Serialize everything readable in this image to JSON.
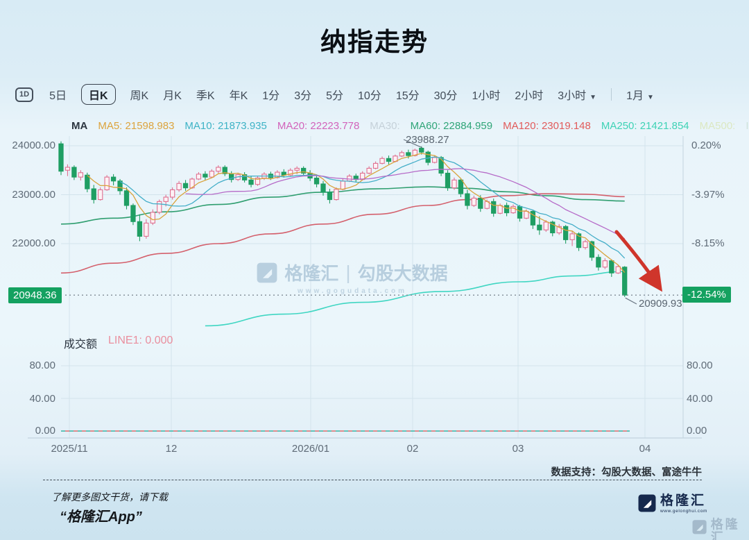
{
  "title": "纳指走势",
  "toolbar": {
    "interval_icon": "1D",
    "items": [
      {
        "label": "5日",
        "selected": false,
        "caret": false,
        "divider_before": false
      },
      {
        "label": "日K",
        "selected": true,
        "caret": false,
        "divider_before": false
      },
      {
        "label": "周K",
        "selected": false,
        "caret": false,
        "divider_before": false
      },
      {
        "label": "月K",
        "selected": false,
        "caret": false,
        "divider_before": false
      },
      {
        "label": "季K",
        "selected": false,
        "caret": false,
        "divider_before": false
      },
      {
        "label": "年K",
        "selected": false,
        "caret": false,
        "divider_before": false
      },
      {
        "label": "1分",
        "selected": false,
        "caret": false,
        "divider_before": false
      },
      {
        "label": "3分",
        "selected": false,
        "caret": false,
        "divider_before": false
      },
      {
        "label": "5分",
        "selected": false,
        "caret": false,
        "divider_before": false
      },
      {
        "label": "10分",
        "selected": false,
        "caret": false,
        "divider_before": false
      },
      {
        "label": "15分",
        "selected": false,
        "caret": false,
        "divider_before": false
      },
      {
        "label": "30分",
        "selected": false,
        "caret": false,
        "divider_before": false
      },
      {
        "label": "1小时",
        "selected": false,
        "caret": false,
        "divider_before": false
      },
      {
        "label": "2小时",
        "selected": false,
        "caret": false,
        "divider_before": false
      },
      {
        "label": "3小时",
        "selected": false,
        "caret": true,
        "divider_before": false
      },
      {
        "label": "1月",
        "selected": false,
        "caret": true,
        "divider_before": true
      }
    ]
  },
  "ma_legend": {
    "prefix": "MA",
    "items": [
      {
        "name": "MA5:",
        "value": "21598.983",
        "color": "#dca43e"
      },
      {
        "name": "MA10:",
        "value": "21873.935",
        "color": "#3eb3c6"
      },
      {
        "name": "MA20:",
        "value": "22223.778",
        "color": "#d263bb"
      },
      {
        "name": "MA30:",
        "value": "",
        "color": "#c5d1d9"
      },
      {
        "name": "MA60:",
        "value": "22884.959",
        "color": "#2fa578"
      },
      {
        "name": "MA120:",
        "value": "23019.148",
        "color": "#e15b5b"
      },
      {
        "name": "MA250:",
        "value": "21421.854",
        "color": "#3ed2b5"
      },
      {
        "name": "MA500:",
        "value": "",
        "color": "#dbe8c2"
      },
      {
        "name": "I",
        "value": "",
        "color": "#cfe3da"
      }
    ]
  },
  "price_axis": {
    "left": [
      "24000.00",
      "23000.00",
      "22000.00"
    ],
    "current_left": "20948.36",
    "right": [
      "0.20%",
      "-3.97%",
      "-8.15%"
    ],
    "current_right": "-12.54%"
  },
  "annotations": {
    "peak": "23988.27",
    "last": "20909.93"
  },
  "volume_panel": {
    "label": "成交额",
    "line1": "LINE1: 0.000",
    "axis_left": [
      "80.00",
      "40.00",
      "0.00"
    ],
    "axis_right": [
      "80.00",
      "40.00",
      "0.00"
    ]
  },
  "watermark": {
    "brand": "格隆汇",
    "sep": "|",
    "name": "勾股大数据",
    "url": "www.gogudata.com"
  },
  "footer": {
    "support": "数据支持：勾股大数据、富途牛牛",
    "promo_line1": "了解更多图文干货，请下载",
    "promo_line2": "“格隆汇App”",
    "logo_text": "格隆汇",
    "logo_url": "www.gelonghui.com"
  },
  "colors": {
    "up_candle": "#df7090",
    "up_fill": "#fdf1f5",
    "down_candle": "#1f9e63",
    "badge_green": "#14a160",
    "arrow_red": "#cf352b",
    "grid": "#d3e3ec",
    "axis_line": "#c3d4de",
    "dotted_price_line": "#7f8b96",
    "vol_dash_teal": "#35b3a2",
    "vol_dash_red": "#d96a6a"
  },
  "chart_data": {
    "type": "candlestick",
    "title": "纳指走势",
    "x_labels": [
      "2025/11",
      "12",
      "2026/01",
      "02",
      "03",
      "04"
    ],
    "price_gridlines": [
      24000,
      23000,
      22000
    ],
    "ylim": [
      20300,
      24250
    ],
    "current_price": 20948.36,
    "current_change_pct": -12.54,
    "peak_high": 23988.27,
    "last_low": 20909.93,
    "volume_gridlines": [
      80,
      40,
      0
    ],
    "volume_line_value": 0.0,
    "candles": [
      [
        24040,
        24090,
        23400,
        23480
      ],
      [
        23500,
        23620,
        23380,
        23560
      ],
      [
        23560,
        23600,
        23300,
        23360
      ],
      [
        23360,
        23500,
        23290,
        23450
      ],
      [
        23400,
        23450,
        23050,
        23120
      ],
      [
        23120,
        23200,
        22820,
        22900
      ],
      [
        22900,
        23150,
        22880,
        23100
      ],
      [
        23100,
        23400,
        23080,
        23360
      ],
      [
        23360,
        23420,
        23190,
        23280
      ],
      [
        23280,
        23320,
        23000,
        23080
      ],
      [
        23080,
        23150,
        22700,
        22780
      ],
      [
        22780,
        22820,
        22380,
        22450
      ],
      [
        22450,
        22600,
        22050,
        22150
      ],
      [
        22150,
        22500,
        22100,
        22420
      ],
      [
        22420,
        22700,
        22380,
        22640
      ],
      [
        22640,
        22900,
        22600,
        22860
      ],
      [
        22860,
        23000,
        22760,
        22950
      ],
      [
        22950,
        23150,
        22900,
        23100
      ],
      [
        23100,
        23280,
        23060,
        23230
      ],
      [
        23230,
        23300,
        23080,
        23140
      ],
      [
        23140,
        23350,
        23120,
        23320
      ],
      [
        23320,
        23460,
        23300,
        23420
      ],
      [
        23420,
        23480,
        23300,
        23360
      ],
      [
        23360,
        23520,
        23340,
        23480
      ],
      [
        23480,
        23600,
        23440,
        23560
      ],
      [
        23560,
        23600,
        23380,
        23430
      ],
      [
        23430,
        23480,
        23250,
        23310
      ],
      [
        23310,
        23450,
        23280,
        23410
      ],
      [
        23410,
        23460,
        23250,
        23300
      ],
      [
        23300,
        23380,
        23150,
        23210
      ],
      [
        23210,
        23380,
        23180,
        23340
      ],
      [
        23340,
        23460,
        23300,
        23420
      ],
      [
        23420,
        23470,
        23300,
        23350
      ],
      [
        23350,
        23500,
        23330,
        23460
      ],
      [
        23460,
        23520,
        23350,
        23400
      ],
      [
        23400,
        23540,
        23380,
        23500
      ],
      [
        23500,
        23580,
        23420,
        23540
      ],
      [
        23540,
        23580,
        23380,
        23440
      ],
      [
        23440,
        23500,
        23280,
        23340
      ],
      [
        23340,
        23400,
        23150,
        23220
      ],
      [
        23220,
        23280,
        22980,
        23050
      ],
      [
        23050,
        23120,
        22820,
        22900
      ],
      [
        22900,
        23150,
        22880,
        23110
      ],
      [
        23110,
        23320,
        23090,
        23280
      ],
      [
        23280,
        23420,
        23260,
        23380
      ],
      [
        23380,
        23430,
        23250,
        23310
      ],
      [
        23310,
        23480,
        23290,
        23440
      ],
      [
        23440,
        23580,
        23420,
        23540
      ],
      [
        23540,
        23680,
        23520,
        23640
      ],
      [
        23640,
        23780,
        23620,
        23740
      ],
      [
        23740,
        23800,
        23620,
        23680
      ],
      [
        23680,
        23820,
        23660,
        23790
      ],
      [
        23790,
        23900,
        23770,
        23860
      ],
      [
        23860,
        23920,
        23740,
        23800
      ],
      [
        23800,
        23940,
        23780,
        23910
      ],
      [
        23950,
        23988,
        23820,
        23870
      ],
      [
        23870,
        23900,
        23600,
        23660
      ],
      [
        23660,
        23800,
        23640,
        23760
      ],
      [
        23760,
        23790,
        23380,
        23440
      ],
      [
        23440,
        23500,
        23080,
        23140
      ],
      [
        23140,
        23350,
        23100,
        23300
      ],
      [
        23300,
        23340,
        22950,
        23020
      ],
      [
        23020,
        23100,
        22700,
        22780
      ],
      [
        22780,
        22980,
        22750,
        22930
      ],
      [
        22930,
        22990,
        22650,
        22720
      ],
      [
        22720,
        22900,
        22700,
        22860
      ],
      [
        22860,
        22920,
        22550,
        22620
      ],
      [
        22620,
        22820,
        22600,
        22780
      ],
      [
        22780,
        22840,
        22560,
        22630
      ],
      [
        22630,
        22800,
        22610,
        22760
      ],
      [
        22760,
        22790,
        22450,
        22520
      ],
      [
        22520,
        22700,
        22500,
        22660
      ],
      [
        22660,
        22690,
        22300,
        22380
      ],
      [
        22380,
        22560,
        22180,
        22280
      ],
      [
        22280,
        22480,
        22240,
        22440
      ],
      [
        22440,
        22470,
        22150,
        22220
      ],
      [
        22220,
        22400,
        22180,
        22350
      ],
      [
        22350,
        22380,
        22000,
        22080
      ],
      [
        22080,
        22260,
        21950,
        22200
      ],
      [
        22200,
        22230,
        21850,
        21920
      ],
      [
        21920,
        22080,
        21880,
        22040
      ],
      [
        22040,
        22060,
        21650,
        21720
      ],
      [
        21720,
        21780,
        21450,
        21520
      ],
      [
        21520,
        21700,
        21480,
        21650
      ],
      [
        21650,
        21680,
        21320,
        21400
      ],
      [
        21400,
        21560,
        21380,
        21530
      ],
      [
        21520,
        21540,
        20910,
        20948
      ]
    ],
    "ma_series": [
      {
        "name": "MA5",
        "period": 5,
        "color": "#d9a33c",
        "current": "21598.983"
      },
      {
        "name": "MA10",
        "period": 10,
        "color": "#44aec8",
        "current": "21873.935"
      },
      {
        "name": "MA20",
        "period": 20,
        "color": "#b66bc8",
        "current": "22223.778"
      },
      {
        "name": "MA60",
        "color": "#2f9e6f",
        "current": "22884.959",
        "points": [
          [
            0,
            22400
          ],
          [
            8,
            22520
          ],
          [
            16,
            22650
          ],
          [
            24,
            22800
          ],
          [
            32,
            22950
          ],
          [
            40,
            23050
          ],
          [
            48,
            23120
          ],
          [
            56,
            23160
          ],
          [
            62,
            23130
          ],
          [
            68,
            23060
          ],
          [
            74,
            22980
          ],
          [
            80,
            22900
          ],
          [
            86,
            22870
          ]
        ]
      },
      {
        "name": "MA120",
        "color": "#d4606c",
        "current": "23019.148",
        "points": [
          [
            0,
            21400
          ],
          [
            8,
            21600
          ],
          [
            16,
            21800
          ],
          [
            24,
            22000
          ],
          [
            32,
            22200
          ],
          [
            40,
            22400
          ],
          [
            48,
            22600
          ],
          [
            56,
            22780
          ],
          [
            62,
            22900
          ],
          [
            68,
            22980
          ],
          [
            74,
            23020
          ],
          [
            80,
            23010
          ],
          [
            86,
            22960
          ]
        ]
      },
      {
        "name": "MA250",
        "color": "#3fd6c2",
        "current": "21421.854",
        "points": [
          [
            22,
            20320
          ],
          [
            34,
            20560
          ],
          [
            46,
            20800
          ],
          [
            58,
            21020
          ],
          [
            70,
            21220
          ],
          [
            78,
            21340
          ],
          [
            86,
            21430
          ]
        ]
      }
    ]
  }
}
